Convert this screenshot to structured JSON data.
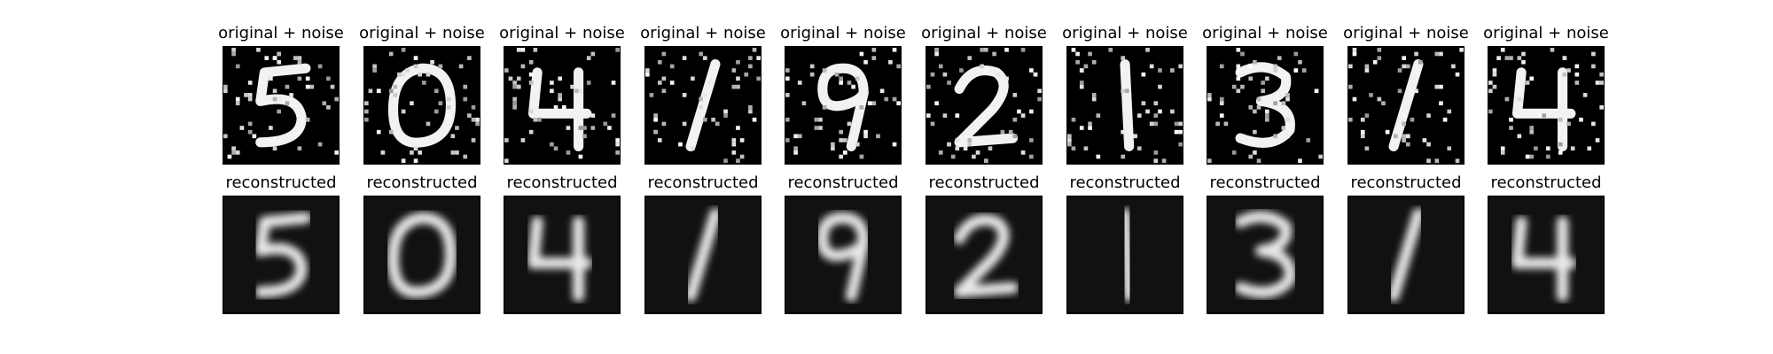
{
  "figure": {
    "rows": [
      {
        "title": "original + noise",
        "kind": "noisy"
      },
      {
        "title": "reconstructed",
        "kind": "clean"
      }
    ],
    "digits": [
      "5",
      "0",
      "4",
      "1",
      "9",
      "2",
      "1",
      "3",
      "1",
      "4"
    ]
  }
}
